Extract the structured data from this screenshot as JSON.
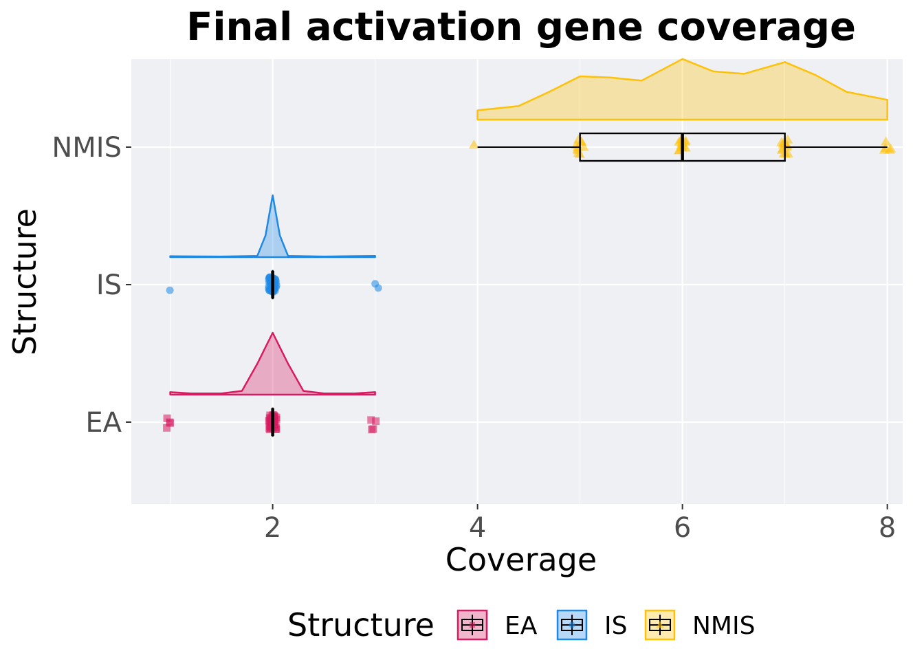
{
  "chart_data": {
    "type": "raincloud",
    "title": "Final activation gene coverage",
    "xlabel": "Coverage",
    "ylabel": "Structure",
    "xlim": [
      0.62,
      8.15
    ],
    "x_ticks": [
      2,
      4,
      6,
      8
    ],
    "categories": [
      "EA",
      "IS",
      "NMIS"
    ],
    "grid": true,
    "legend_position": "bottom",
    "legend_title": "Structure",
    "series": [
      {
        "name": "EA",
        "color": "#D81B60",
        "marker": "square",
        "box": {
          "min": 2,
          "q1": 2,
          "median": 2,
          "q3": 2,
          "max": 2
        },
        "points": [
          {
            "x": 1,
            "n": 4
          },
          {
            "x": 2,
            "n": 40
          },
          {
            "x": 3,
            "n": 4
          }
        ],
        "density": [
          [
            1.0,
            0.04
          ],
          [
            1.2,
            0.02
          ],
          [
            1.5,
            0.02
          ],
          [
            1.7,
            0.06
          ],
          [
            1.85,
            0.5
          ],
          [
            2.0,
            1.0
          ],
          [
            2.15,
            0.5
          ],
          [
            2.3,
            0.06
          ],
          [
            2.5,
            0.02
          ],
          [
            2.8,
            0.02
          ],
          [
            3.0,
            0.04
          ]
        ]
      },
      {
        "name": "IS",
        "color": "#1E88E5",
        "marker": "circle",
        "box": {
          "min": 2,
          "q1": 2,
          "median": 2,
          "q3": 2,
          "max": 2
        },
        "points": [
          {
            "x": 1,
            "n": 1
          },
          {
            "x": 2,
            "n": 45
          },
          {
            "x": 3,
            "n": 2
          }
        ],
        "density": [
          [
            1.0,
            0.015
          ],
          [
            1.5,
            0.01
          ],
          [
            1.85,
            0.02
          ],
          [
            1.93,
            0.35
          ],
          [
            2.0,
            1.0
          ],
          [
            2.07,
            0.35
          ],
          [
            2.15,
            0.02
          ],
          [
            2.5,
            0.01
          ],
          [
            3.0,
            0.02
          ]
        ]
      },
      {
        "name": "NMIS",
        "color": "#FFC107",
        "marker": "triangle",
        "box": {
          "min": 4,
          "q1": 5,
          "median": 6,
          "q3": 7,
          "max": 8
        },
        "points": [
          {
            "x": 4,
            "n": 1
          },
          {
            "x": 5,
            "n": 10
          },
          {
            "x": 6,
            "n": 14
          },
          {
            "x": 7,
            "n": 12
          },
          {
            "x": 8,
            "n": 5
          }
        ],
        "density": [
          [
            4.0,
            0.15
          ],
          [
            4.4,
            0.22
          ],
          [
            4.7,
            0.45
          ],
          [
            5.0,
            0.7
          ],
          [
            5.3,
            0.68
          ],
          [
            5.6,
            0.63
          ],
          [
            6.0,
            0.98
          ],
          [
            6.3,
            0.78
          ],
          [
            6.6,
            0.74
          ],
          [
            7.0,
            0.93
          ],
          [
            7.3,
            0.72
          ],
          [
            7.6,
            0.45
          ],
          [
            8.0,
            0.32
          ]
        ]
      }
    ]
  }
}
